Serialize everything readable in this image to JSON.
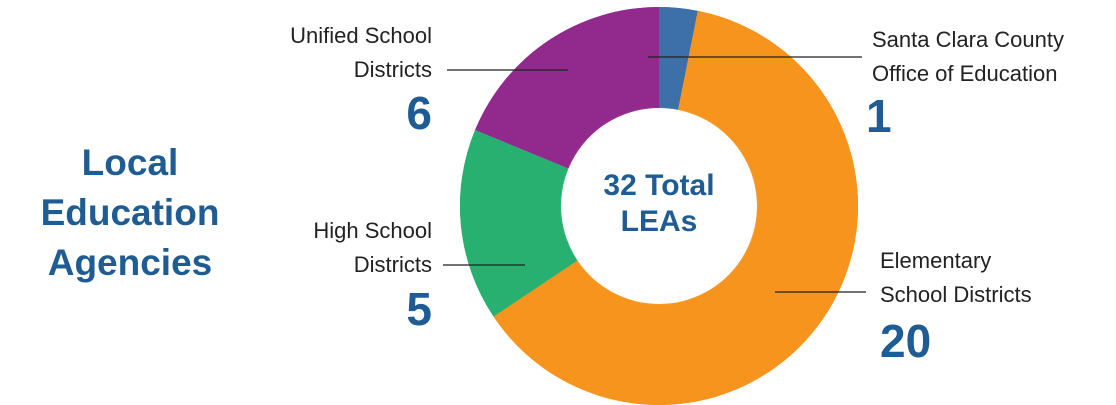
{
  "chart_data": {
    "type": "pie",
    "donut": true,
    "title": "Local Education Agencies",
    "center_label": "32 Total LEAs",
    "categories": [
      "Santa Clara County Office of Education",
      "Elementary School Districts",
      "High School Districts",
      "Unified School Districts"
    ],
    "values": [
      1,
      20,
      5,
      6
    ],
    "colors": [
      "#3d6fa8",
      "#f7941d",
      "#27b06f",
      "#922a8e"
    ]
  }
}
